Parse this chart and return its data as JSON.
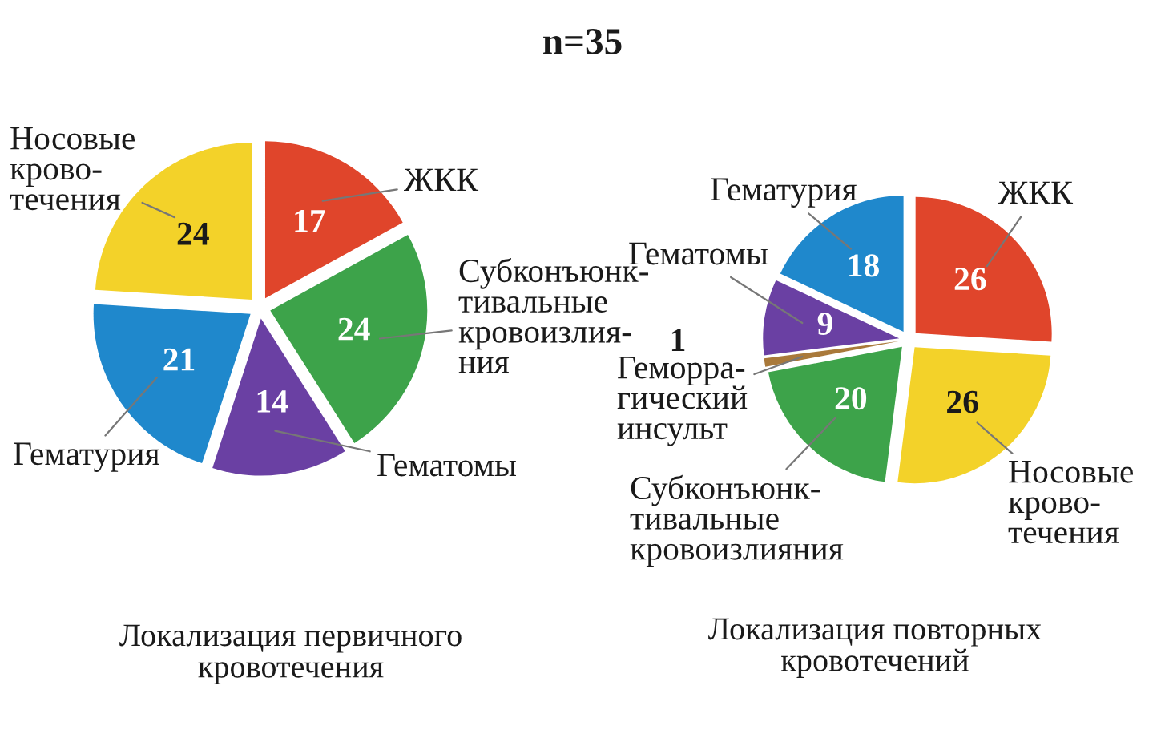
{
  "chart_data": [
    {
      "type": "pie",
      "title": "Локализация первичного\nкровотечения",
      "annotations": [
        "n=35"
      ],
      "categories": [
        "ЖКК",
        "Субконъюнк-\nтивальные\nкровоизлия-\nния",
        "Гематомы",
        "Гематурия",
        "Носовые\nкрово-\nтечения"
      ],
      "values": [
        17,
        24,
        14,
        21,
        24
      ],
      "colors": [
        "#e0452b",
        "#3da34a",
        "#6a40a3",
        "#1f88cc",
        "#f3d229"
      ],
      "data_labels": true
    },
    {
      "type": "pie",
      "title": "Локализация повторных\nкровотечений",
      "categories": [
        "ЖКК",
        "Носовые\nкрово-\nтечения",
        "Субконъюнк-\nтивальные\nкровоизлияния",
        "Геморра-\nгический\nинсульт",
        "Гематомы",
        "Гематурия"
      ],
      "values": [
        26,
        26,
        20,
        1,
        9,
        18
      ],
      "colors": [
        "#e0452b",
        "#f3d229",
        "#3da34a",
        "#a9793a",
        "#6a40a3",
        "#1f88cc"
      ],
      "data_labels": true
    }
  ]
}
